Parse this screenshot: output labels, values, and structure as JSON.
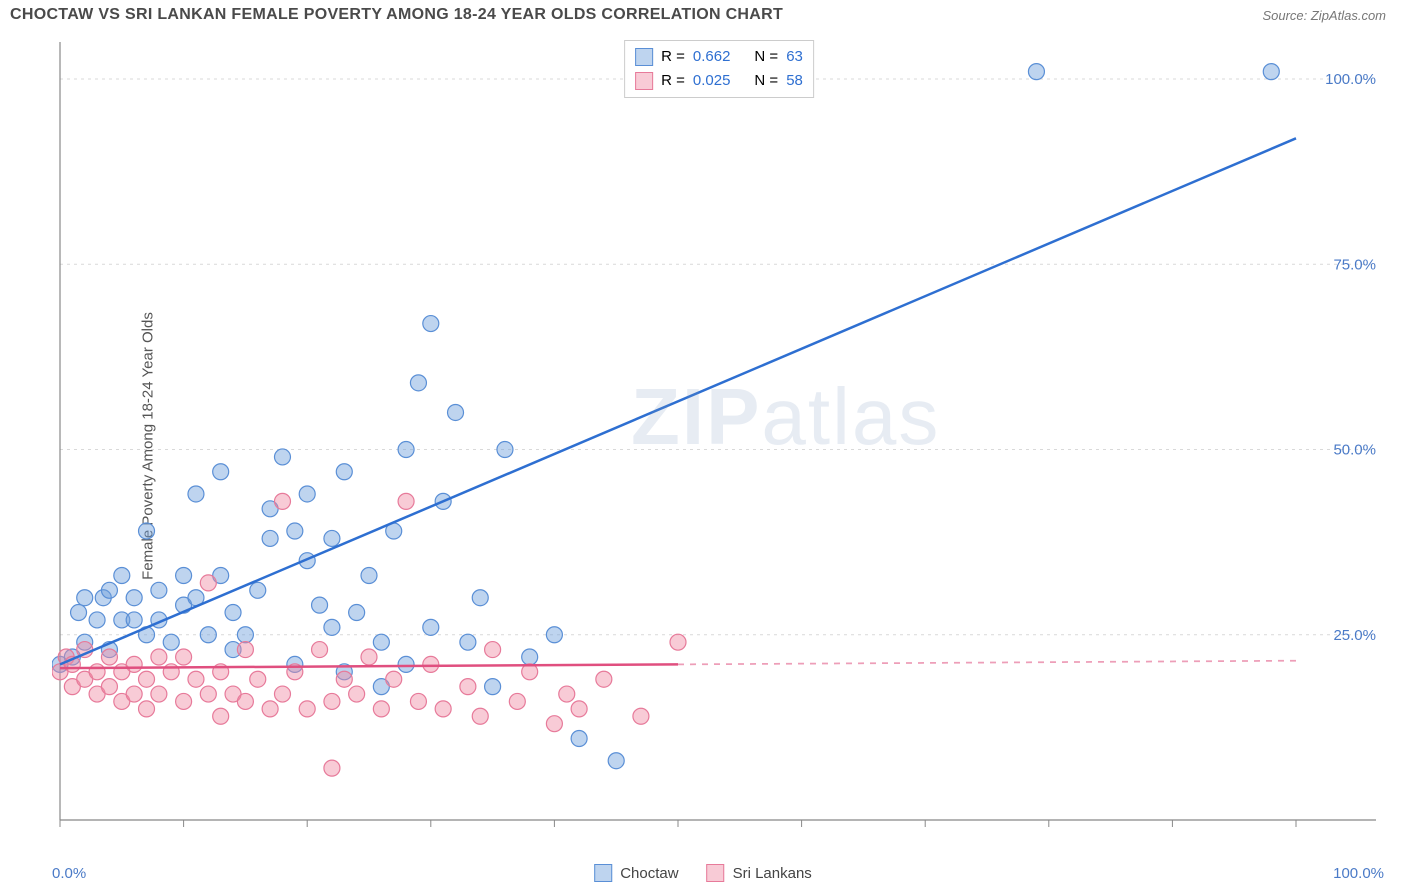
{
  "title": "CHOCTAW VS SRI LANKAN FEMALE POVERTY AMONG 18-24 YEAR OLDS CORRELATION CHART",
  "source": "Source: ZipAtlas.com",
  "ylabel": "Female Poverty Among 18-24 Year Olds",
  "watermark": {
    "part1": "ZIP",
    "part2": "atlas"
  },
  "chart": {
    "type": "scatter",
    "xlim": [
      0,
      100
    ],
    "ylim": [
      0,
      105
    ],
    "xtick_labels": [
      "0.0%",
      "100.0%"
    ],
    "ytick_labels": [
      "25.0%",
      "50.0%",
      "75.0%",
      "100.0%"
    ],
    "ytick_values": [
      25,
      50,
      75,
      100
    ],
    "xtick_minor": [
      10,
      20,
      30,
      40,
      50,
      60,
      70,
      80,
      90
    ],
    "grid_color": "#d9d9d9",
    "axis_color": "#888888",
    "background_color": "#ffffff",
    "tick_label_color": "#4a7ac7",
    "label_fontsize": 15,
    "tick_fontsize": 15,
    "series": [
      {
        "name": "Choctaw",
        "color_fill": "rgba(110,160,220,0.45)",
        "color_stroke": "#5a8fd6",
        "marker_radius": 8,
        "trend": {
          "x1": 0,
          "y1": 21,
          "x2": 100,
          "y2": 92,
          "color": "#2e6fd1",
          "width": 2.5,
          "solid_until_x": 100
        },
        "points": [
          [
            0,
            21
          ],
          [
            1,
            22
          ],
          [
            1.5,
            28
          ],
          [
            2,
            30
          ],
          [
            2,
            24
          ],
          [
            3,
            27
          ],
          [
            3.5,
            30
          ],
          [
            4,
            31
          ],
          [
            4,
            23
          ],
          [
            5,
            27
          ],
          [
            5,
            33
          ],
          [
            6,
            30
          ],
          [
            6,
            27
          ],
          [
            7,
            25
          ],
          [
            7,
            39
          ],
          [
            8,
            31
          ],
          [
            8,
            27
          ],
          [
            9,
            24
          ],
          [
            10,
            33
          ],
          [
            10,
            29
          ],
          [
            11,
            30
          ],
          [
            11,
            44
          ],
          [
            12,
            25
          ],
          [
            13,
            33
          ],
          [
            13,
            47
          ],
          [
            14,
            28
          ],
          [
            14,
            23
          ],
          [
            15,
            25
          ],
          [
            16,
            31
          ],
          [
            17,
            38
          ],
          [
            17,
            42
          ],
          [
            18,
            49
          ],
          [
            19,
            39
          ],
          [
            19,
            21
          ],
          [
            20,
            44
          ],
          [
            20,
            35
          ],
          [
            21,
            29
          ],
          [
            22,
            26
          ],
          [
            22,
            38
          ],
          [
            23,
            47
          ],
          [
            23,
            20
          ],
          [
            24,
            28
          ],
          [
            25,
            33
          ],
          [
            26,
            24
          ],
          [
            26,
            18
          ],
          [
            27,
            39
          ],
          [
            28,
            50
          ],
          [
            28,
            21
          ],
          [
            29,
            59
          ],
          [
            30,
            67
          ],
          [
            30,
            26
          ],
          [
            31,
            43
          ],
          [
            32,
            55
          ],
          [
            33,
            24
          ],
          [
            34,
            30
          ],
          [
            35,
            18
          ],
          [
            36,
            50
          ],
          [
            38,
            22
          ],
          [
            40,
            25
          ],
          [
            42,
            11
          ],
          [
            45,
            8
          ],
          [
            79,
            101
          ],
          [
            98,
            101
          ]
        ]
      },
      {
        "name": "Sri Lankans",
        "color_fill": "rgba(240,140,165,0.45)",
        "color_stroke": "#e77a9a",
        "marker_radius": 8,
        "trend": {
          "x1": 0,
          "y1": 20.5,
          "x2": 100,
          "y2": 21.5,
          "color": "#e04f7f",
          "width": 2.5,
          "solid_until_x": 50
        },
        "points": [
          [
            0,
            20
          ],
          [
            0.5,
            22
          ],
          [
            1,
            21
          ],
          [
            1,
            18
          ],
          [
            2,
            23
          ],
          [
            2,
            19
          ],
          [
            3,
            20
          ],
          [
            3,
            17
          ],
          [
            4,
            22
          ],
          [
            4,
            18
          ],
          [
            5,
            20
          ],
          [
            5,
            16
          ],
          [
            6,
            17
          ],
          [
            6,
            21
          ],
          [
            7,
            19
          ],
          [
            7,
            15
          ],
          [
            8,
            22
          ],
          [
            8,
            17
          ],
          [
            9,
            20
          ],
          [
            10,
            16
          ],
          [
            10,
            22
          ],
          [
            11,
            19
          ],
          [
            12,
            17
          ],
          [
            12,
            32
          ],
          [
            13,
            20
          ],
          [
            13,
            14
          ],
          [
            14,
            17
          ],
          [
            15,
            23
          ],
          [
            15,
            16
          ],
          [
            16,
            19
          ],
          [
            17,
            15
          ],
          [
            18,
            43
          ],
          [
            18,
            17
          ],
          [
            19,
            20
          ],
          [
            20,
            15
          ],
          [
            21,
            23
          ],
          [
            22,
            16
          ],
          [
            22,
            7
          ],
          [
            23,
            19
          ],
          [
            24,
            17
          ],
          [
            25,
            22
          ],
          [
            26,
            15
          ],
          [
            27,
            19
          ],
          [
            28,
            43
          ],
          [
            29,
            16
          ],
          [
            30,
            21
          ],
          [
            31,
            15
          ],
          [
            33,
            18
          ],
          [
            34,
            14
          ],
          [
            35,
            23
          ],
          [
            37,
            16
          ],
          [
            38,
            20
          ],
          [
            40,
            13
          ],
          [
            41,
            17
          ],
          [
            42,
            15
          ],
          [
            44,
            19
          ],
          [
            47,
            14
          ],
          [
            50,
            24
          ]
        ]
      }
    ],
    "legend_stats": [
      {
        "swatch_fill": "rgba(110,160,220,0.45)",
        "swatch_stroke": "#5a8fd6",
        "r_label": "R =",
        "r": "0.662",
        "n_label": "N =",
        "n": "63"
      },
      {
        "swatch_fill": "rgba(240,140,165,0.45)",
        "swatch_stroke": "#e77a9a",
        "r_label": "R =",
        "r": "0.025",
        "n_label": "N =",
        "n": "58"
      }
    ],
    "legend_bottom": [
      {
        "swatch_fill": "rgba(110,160,220,0.45)",
        "swatch_stroke": "#5a8fd6",
        "label": "Choctaw"
      },
      {
        "swatch_fill": "rgba(240,140,165,0.45)",
        "swatch_stroke": "#e77a9a",
        "label": "Sri Lankans"
      }
    ]
  }
}
